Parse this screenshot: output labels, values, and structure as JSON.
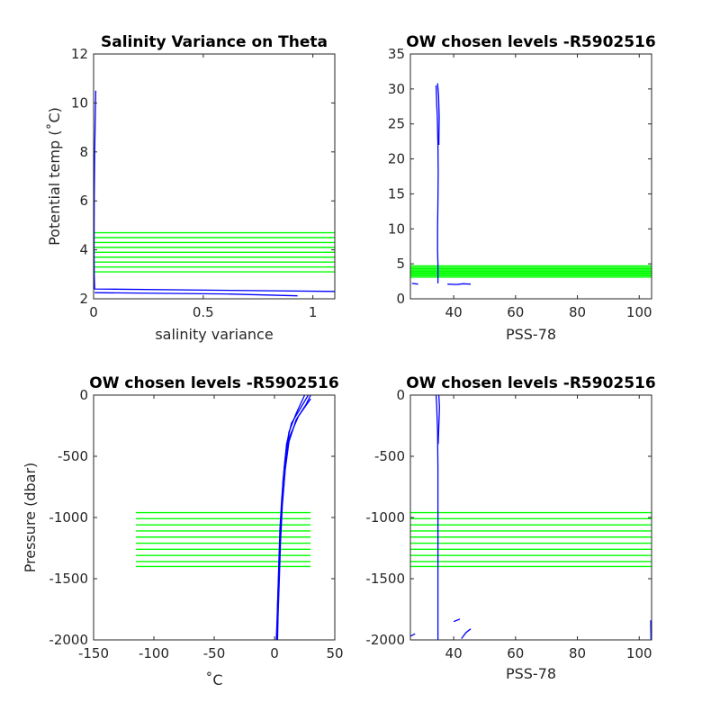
{
  "figure": {
    "colors": {
      "profile": "#0000ff",
      "levels": "#00ff00",
      "axes": "#262626"
    }
  },
  "chart_data": [
    {
      "type": "line",
      "title": "Salinity Variance on Theta",
      "xlabel": "salinity variance",
      "ylabel": "Potential temp (˚C)",
      "xlim": [
        0,
        1.1
      ],
      "ylim": [
        2,
        12
      ],
      "xticks": [
        0,
        0.5,
        1
      ],
      "xtick_labels": [
        "0",
        "0.5",
        "1"
      ],
      "yticks": [
        2,
        4,
        6,
        8,
        10,
        12
      ],
      "ytick_labels": [
        "2",
        "4",
        "6",
        "8",
        "10",
        "12"
      ],
      "series": [
        {
          "color": "#0000ff",
          "points": [
            [
              0.01,
              10.5
            ],
            [
              0.005,
              8
            ],
            [
              0.003,
              6
            ],
            [
              0.002,
              4
            ],
            [
              0.003,
              3
            ],
            [
              0.005,
              2.4
            ],
            [
              1.1,
              2.3
            ]
          ]
        },
        {
          "color": "#0000ff",
          "points": [
            [
              0.005,
              2.25
            ],
            [
              0.6,
              2.2
            ],
            [
              0.93,
              2.12
            ]
          ]
        }
      ],
      "level_range": [
        0,
        1.1
      ],
      "levels": [
        3.1,
        3.3,
        3.5,
        3.7,
        3.9,
        4.1,
        4.3,
        4.5,
        4.7
      ]
    },
    {
      "type": "line",
      "title": "OW chosen levels -R5902516",
      "xlabel": "PSS-78",
      "ylabel": "",
      "xlim": [
        26,
        104
      ],
      "ylim": [
        0,
        35
      ],
      "xticks": [
        40,
        60,
        80,
        100
      ],
      "xtick_labels": [
        "40",
        "60",
        "80",
        "100"
      ],
      "yticks": [
        0,
        5,
        10,
        15,
        20,
        25,
        30,
        35
      ],
      "ytick_labels": [
        "0",
        "5",
        "10",
        "15",
        "20",
        "25",
        "30",
        "35"
      ],
      "series": [
        {
          "color": "#0000ff",
          "points": [
            [
              34.3,
              30.5
            ],
            [
              34.5,
              28
            ],
            [
              34.7,
              26
            ],
            [
              34.9,
              22
            ],
            [
              35.0,
              18
            ],
            [
              34.9,
              14
            ],
            [
              34.8,
              10
            ],
            [
              34.8,
              7
            ],
            [
              34.9,
              5
            ],
            [
              34.9,
              3
            ],
            [
              34.9,
              2.2
            ]
          ]
        },
        {
          "color": "#0000ff",
          "points": [
            [
              34.8,
              30.8
            ],
            [
              35.1,
              29
            ],
            [
              35.3,
              26
            ],
            [
              35.2,
              22
            ]
          ]
        },
        {
          "color": "#0000ff",
          "points": [
            [
              26.5,
              2.2
            ],
            [
              28.5,
              2.1
            ]
          ]
        },
        {
          "color": "#0000ff",
          "points": [
            [
              38,
              2.1
            ],
            [
              41,
              2.05
            ],
            [
              43,
              2.15
            ],
            [
              45.5,
              2.1
            ]
          ]
        }
      ],
      "level_range": [
        26,
        104
      ],
      "levels": [
        3.1,
        3.3,
        3.5,
        3.7,
        3.9,
        4.1,
        4.3,
        4.5,
        4.7
      ]
    },
    {
      "type": "line",
      "title": "OW chosen levels -R5902516",
      "xlabel": "˚C",
      "ylabel": "Pressure (dbar)",
      "xlim": [
        -150,
        50
      ],
      "ylim": [
        -2000,
        0
      ],
      "xticks": [
        -150,
        -100,
        -50,
        0,
        50
      ],
      "xtick_labels": [
        "-150",
        "-100",
        "-50",
        "0",
        "50"
      ],
      "yticks": [
        -2000,
        -1500,
        -1000,
        -500,
        0
      ],
      "ytick_labels": [
        "-2000",
        "-1500",
        "-1000",
        "-500",
        "0"
      ],
      "series": [
        {
          "color": "#0000ff",
          "points": [
            [
              28,
              0
            ],
            [
              22,
              -100
            ],
            [
              14,
              -230
            ],
            [
              10,
              -400
            ],
            [
              8,
              -600
            ],
            [
              6,
              -850
            ],
            [
              4.5,
              -1100
            ],
            [
              3.5,
              -1400
            ],
            [
              2.5,
              -1700
            ],
            [
              2,
              -2000
            ]
          ]
        },
        {
          "color": "#0000ff",
          "points": [
            [
              30,
              0
            ],
            [
              26,
              -80
            ],
            [
              18,
              -200
            ],
            [
              12,
              -380
            ],
            [
              9,
              -600
            ],
            [
              6.5,
              -900
            ],
            [
              5,
              -1200
            ],
            [
              4,
              -1500
            ],
            [
              3,
              -1800
            ],
            [
              2.5,
              -2000
            ]
          ]
        },
        {
          "color": "#0000ff",
          "points": [
            [
              25,
              0
            ],
            [
              18,
              -150
            ],
            [
              12,
              -300
            ],
            [
              9,
              -500
            ],
            [
              7,
              -700
            ],
            [
              5.5,
              -1000
            ],
            [
              4,
              -1300
            ],
            [
              3,
              -1600
            ],
            [
              1.5,
              -2000
            ]
          ]
        },
        {
          "color": "#0000ff",
          "points": [
            [
              30,
              -30
            ],
            [
              20,
              -170
            ],
            [
              12,
              -350
            ],
            [
              8.5,
              -600
            ]
          ]
        }
      ],
      "level_range": [
        -115,
        30
      ],
      "levels": [
        -960,
        -1010,
        -1060,
        -1110,
        -1160,
        -1210,
        -1260,
        -1310,
        -1360,
        -1400
      ]
    },
    {
      "type": "line",
      "title": "OW chosen levels -R5902516",
      "xlabel": "PSS-78",
      "ylabel": "",
      "xlim": [
        26,
        104
      ],
      "ylim": [
        -2000,
        0
      ],
      "xticks": [
        40,
        60,
        80,
        100
      ],
      "xtick_labels": [
        "40",
        "60",
        "80",
        "100"
      ],
      "yticks": [
        -2000,
        -1500,
        -1000,
        -500,
        0
      ],
      "ytick_labels": [
        "-2000",
        "-1500",
        "-1000",
        "-500",
        "0"
      ],
      "series": [
        {
          "color": "#0000ff",
          "points": [
            [
              34.3,
              0
            ],
            [
              34.5,
              -80
            ],
            [
              34.6,
              -150
            ],
            [
              34.8,
              -300
            ],
            [
              34.9,
              -600
            ],
            [
              34.9,
              -1000
            ],
            [
              34.9,
              -1500
            ],
            [
              34.9,
              -2000
            ]
          ]
        },
        {
          "color": "#0000ff",
          "points": [
            [
              35.2,
              0
            ],
            [
              35.4,
              -100
            ],
            [
              35.2,
              -250
            ],
            [
              35.0,
              -400
            ]
          ]
        },
        {
          "color": "#0000ff",
          "points": [
            [
              26,
              -1970
            ],
            [
              27.5,
              -1950
            ]
          ]
        },
        {
          "color": "#0000ff",
          "points": [
            [
              40,
              -1850
            ],
            [
              42,
              -1830
            ]
          ]
        },
        {
          "color": "#0000ff",
          "points": [
            [
              42.5,
              -1990
            ],
            [
              44,
              -1940
            ],
            [
              45.5,
              -1910
            ]
          ]
        },
        {
          "color": "#0000ff",
          "points": [
            [
              103.7,
              -1840
            ],
            [
              103.8,
              -2000
            ]
          ]
        }
      ],
      "level_range": [
        26,
        104
      ],
      "levels": [
        -960,
        -1010,
        -1060,
        -1110,
        -1160,
        -1210,
        -1260,
        -1310,
        -1360,
        -1400
      ]
    }
  ]
}
